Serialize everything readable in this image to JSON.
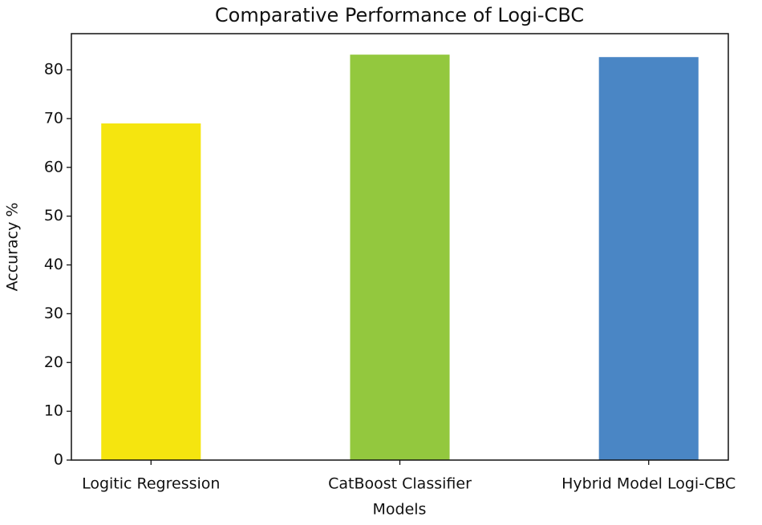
{
  "chart_data": {
    "type": "bar",
    "title": "Comparative Performance of Logi-CBC",
    "xlabel": "Models",
    "ylabel": "Accuracy %",
    "categories": [
      "Logitic Regression",
      "CatBoost Classifier",
      "Hybrid Model Logi-CBC"
    ],
    "values": [
      69.0,
      83.1,
      82.6
    ],
    "colors": [
      "#f5e50f",
      "#93c83e",
      "#4a86c5"
    ],
    "ylim": [
      0,
      87.4
    ],
    "yticks": [
      0,
      10,
      20,
      30,
      40,
      50,
      60,
      70,
      80
    ]
  }
}
